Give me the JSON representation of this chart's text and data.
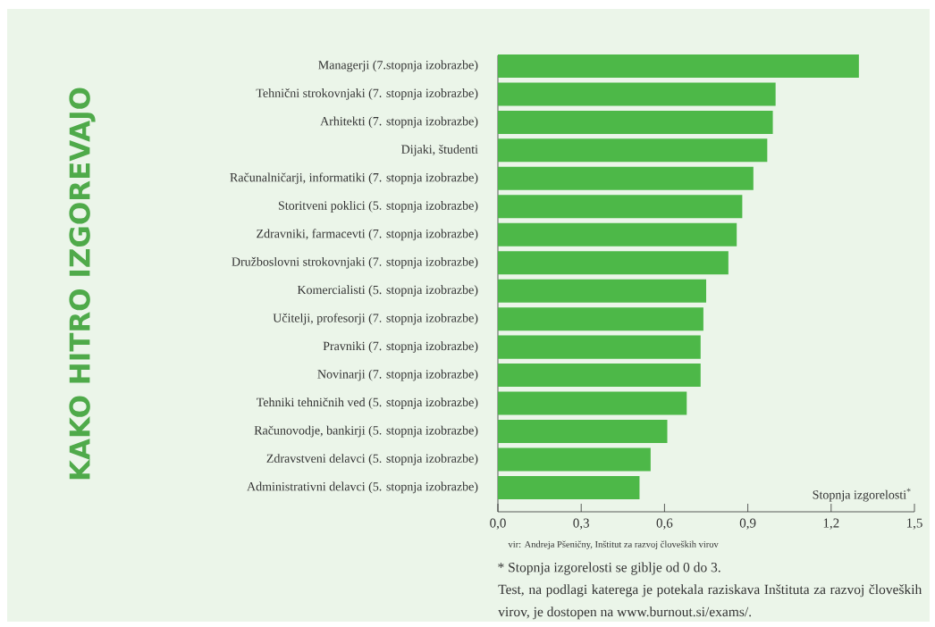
{
  "chart_data": {
    "type": "bar",
    "orientation": "horizontal",
    "title": "KAKO HITRO IZGOREVAJO",
    "xlabel": "Stopnja izgorelosti$^{*}$",
    "categories": [
      "Managerji (7.stopnja izobrazbe)",
      "Tehnični strokovnjaki (7. stopnja izobrazbe)",
      "Arhitekti (7. stopnja izobrazbe)",
      "Dijaki, študenti",
      "Računalničarji, informatiki (7. stopnja izobrazbe)",
      "Storitveni poklici (5. stopnja izobrazbe)",
      "Zdravniki, farmacevti (7. stopnja izobrazbe)",
      "Družboslovni strokovnjaki (7. stopnja izobrazbe)",
      "Komercialisti (5. stopnja izobrazbe)",
      "Učitelji, profesorji (7. stopnja izobrazbe)",
      "Pravniki (7. stopnja izobrazbe)",
      "Novinarji (7. stopnja izobrazbe)",
      "Tehniki tehničnih ved (5. stopnja izobrazbe)",
      "Računovodje, bankirji (5. stopnja izobrazbe)",
      "Zdravstveni delavci (5. stopnja izobrazbe)",
      "Administrativni delavci (5. stopnja izobrazbe)"
    ],
    "values": [
      1.3,
      1.0,
      0.99,
      0.97,
      0.92,
      0.88,
      0.86,
      0.83,
      0.75,
      0.74,
      0.73,
      0.73,
      0.68,
      0.61,
      0.55,
      0.51
    ],
    "color": "#4db848",
    "xlim": [
      0,
      1.5
    ],
    "xticks": [
      {
        "value": 0,
        "label": "0,0"
      },
      {
        "value": 0.3,
        "label": "0,3"
      },
      {
        "value": 0.6,
        "label": "0,6"
      },
      {
        "value": 0.9,
        "label": "0,9"
      },
      {
        "value": 1.2,
        "label": "1,2"
      },
      {
        "value": 1.5,
        "label": "1,5"
      }
    ],
    "annotations": [
      "vir: Andreja Pšeničny, Inštitut za razvoj človeških virov",
      "* Stopnja izgorelosti se giblje od 0 do 3.",
      "Test, na podlagi katerega je potekala raziskava Inštituta za razvoj človeških virov, je dostopen na www.burnout.si/exams/."
    ]
  }
}
